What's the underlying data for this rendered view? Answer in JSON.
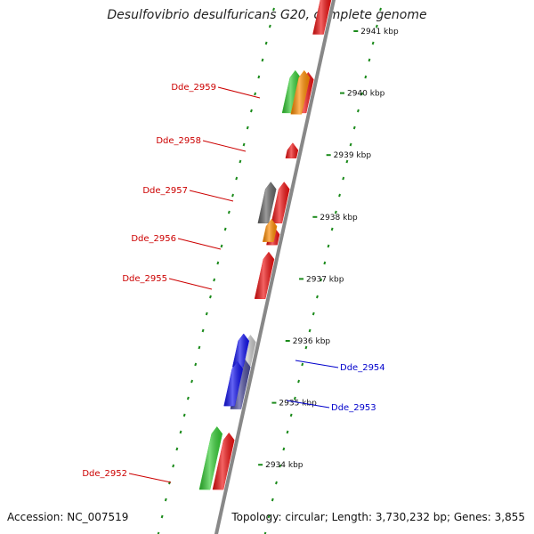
{
  "title": "Desulfovibrio desulfuricans G20, complete genome",
  "footer": {
    "accession": "Accession: NC_007519",
    "topology": "Topology: circular; Length: 3,730,232 bp; Genes: 3,855"
  },
  "ruler": [
    {
      "label": "2941 kbp",
      "pos": 2941
    },
    {
      "label": "2940 kbp",
      "pos": 2940
    },
    {
      "label": "2939 kbp",
      "pos": 2939
    },
    {
      "label": "2938 kbp",
      "pos": 2938
    },
    {
      "label": "2937 kbp",
      "pos": 2937
    },
    {
      "label": "2936 kbp",
      "pos": 2936
    },
    {
      "label": "2935 kbp",
      "pos": 2935
    },
    {
      "label": "2934 kbp",
      "pos": 2934
    }
  ],
  "colors": {
    "backbone": "#888888",
    "ticks": "#1a8a1a",
    "red": "#ee1111",
    "green": "#33cc33",
    "orange": "#ff8c00",
    "gray": "#666666",
    "lightgray": "#c8c8c8",
    "blue": "#1111ee",
    "slate": "#4a4a99",
    "label_red": "#cc0000",
    "label_blue": "#0000cc"
  },
  "genes": [
    {
      "name": "Dde_2959",
      "label_color": "red"
    },
    {
      "name": "Dde_2958",
      "label_color": "red"
    },
    {
      "name": "Dde_2957",
      "label_color": "red"
    },
    {
      "name": "Dde_2956",
      "label_color": "red"
    },
    {
      "name": "Dde_2955",
      "label_color": "red"
    },
    {
      "name": "Dde_2954",
      "label_color": "blue"
    },
    {
      "name": "Dde_2953",
      "label_color": "blue"
    },
    {
      "name": "Dde_2952",
      "label_color": "red"
    }
  ],
  "features": [
    {
      "track": "cds_plus",
      "color": "red",
      "start": 2940.95,
      "end": 2941.5
    },
    {
      "track": "cds_plus",
      "color": "red",
      "start": 2939.68,
      "end": 2940.22
    },
    {
      "track": "cds_plus",
      "color": "red",
      "start": 2938.95,
      "end": 2939.08
    },
    {
      "track": "cds_plus",
      "color": "red",
      "start": 2937.9,
      "end": 2938.45
    },
    {
      "track": "cds_plus",
      "color": "red",
      "start": 2937.55,
      "end": 2937.72
    },
    {
      "track": "cds_plus",
      "color": "red",
      "start": 2936.68,
      "end": 2937.32
    },
    {
      "track": "cds_plus",
      "color": "lightgray",
      "start": 2935.6,
      "end": 2935.98
    },
    {
      "track": "cds_plus",
      "color": "slate",
      "start": 2934.9,
      "end": 2935.58
    },
    {
      "track": "cds_plus",
      "color": "red",
      "start": 2933.6,
      "end": 2934.4
    },
    {
      "track": "cog_a",
      "color": "green",
      "start": 2939.68,
      "end": 2940.25
    },
    {
      "track": "cog_b",
      "color": "orange",
      "start": 2939.66,
      "end": 2940.25
    },
    {
      "track": "cog_a",
      "color": "gray",
      "start": 2937.9,
      "end": 2938.45
    },
    {
      "track": "cog_b",
      "color": "orange",
      "start": 2937.6,
      "end": 2937.85
    },
    {
      "track": "cds_minus",
      "color": "blue",
      "start": 2935.58,
      "end": 2936.0
    },
    {
      "track": "cds_minus",
      "color": "blue",
      "start": 2934.95,
      "end": 2935.55
    },
    {
      "track": "cog_a",
      "color": "green",
      "start": 2933.6,
      "end": 2934.5
    }
  ]
}
